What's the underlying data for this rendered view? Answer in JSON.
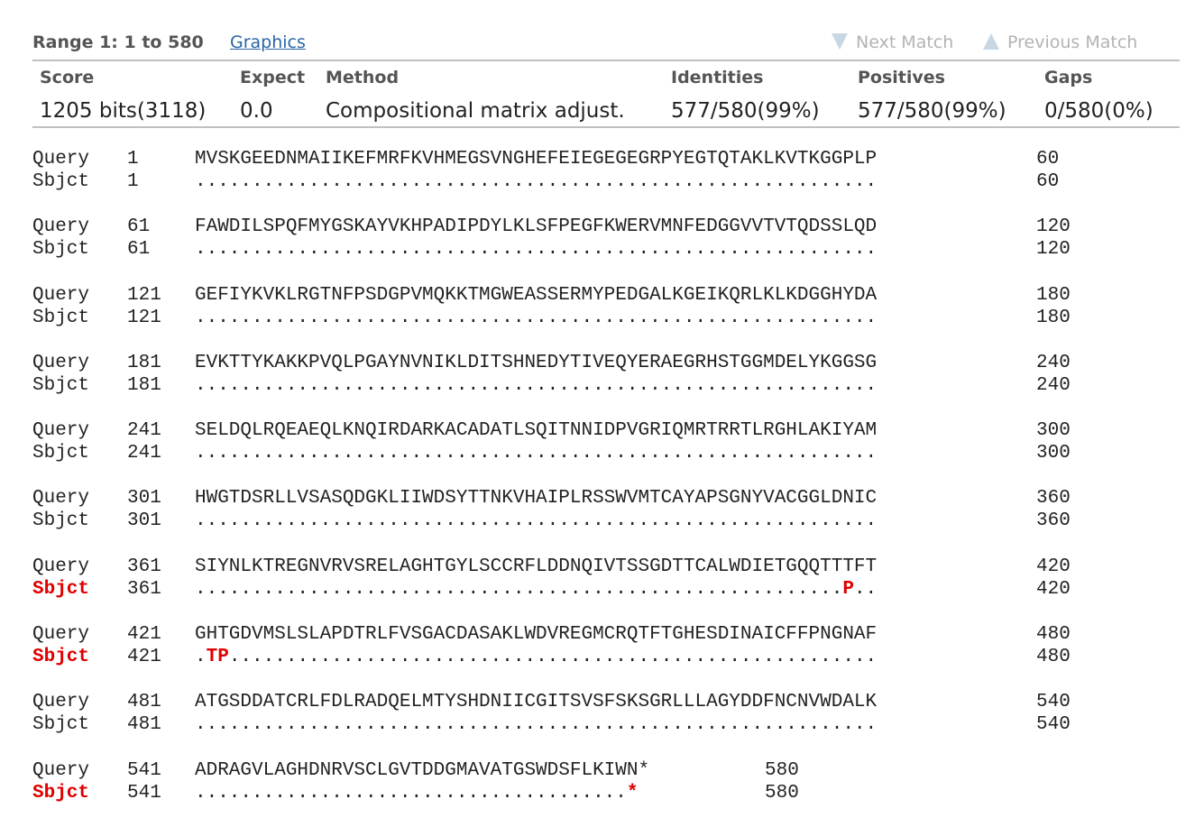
{
  "range": {
    "label": "Range 1: 1 to 580",
    "graphics_link": "Graphics",
    "next_match": "Next Match",
    "previous_match": "Previous Match"
  },
  "stats": {
    "headers": {
      "score": "Score",
      "expect": "Expect",
      "method": "Method",
      "identities": "Identities",
      "positives": "Positives",
      "gaps": "Gaps"
    },
    "values": {
      "score": "1205 bits(3118)",
      "expect": "0.0",
      "method": "Compositional matrix adjust.",
      "identities": "577/580(99%)",
      "positives": "577/580(99%)",
      "gaps": "0/580(0%)"
    }
  },
  "alignment": {
    "query_label": "Query",
    "subject_label": "Sbjct",
    "blocks": [
      {
        "start": "1",
        "end": "60",
        "query": "MVSKGEEDNMAIIKEFMRFKVHMEGSVNGHEFEIEGEGEGRPYEGTQTAKLKVTKGGPLP",
        "subject": "............................................................",
        "subject_red": false
      },
      {
        "start": "61",
        "end": "120",
        "query": "FAWDILSPQFMYGSKAYVKHPADIPDYLKLSFPEGFKWERVMNFEDGGVVTVTQDSSLQD",
        "subject": "............................................................",
        "subject_red": false
      },
      {
        "start": "121",
        "end": "180",
        "query": "GEFIYKVKLRGTNFPSDGPVMQKKTMGWEASSERMYPEDGALKGEIKQRLKLKDGGHYDA",
        "subject": "............................................................",
        "subject_red": false
      },
      {
        "start": "181",
        "end": "240",
        "query": "EVKTTYKAKKPVQLPGAYNVNIKLDITSHNEDYTIVEQYERAEGRHSTGGMDELYKGGSG",
        "subject": "............................................................",
        "subject_red": false
      },
      {
        "start": "241",
        "end": "300",
        "query": "SELDQLRQEAEQLKNQIRDARKACADATLSQITNNIDPVGRIQMRTRRTLRGHLAKIYAM",
        "subject": "............................................................",
        "subject_red": false
      },
      {
        "start": "301",
        "end": "360",
        "query": "HWGTDSRLLVSASQDGKLIIWDSYTTNKVHAIPLRSSWVMTCAYAPSGNYVACGGLDNIC",
        "subject": "............................................................",
        "subject_red": false
      },
      {
        "start": "361",
        "end": "420",
        "query": "SIYNLKTREGNVRVSRELAGHTGYLSCCRFLDDNQIVTSSGDTTCALWDIETGQQTTTFT",
        "subject": ".........................................................P..",
        "subject_red": true
      },
      {
        "start": "421",
        "end": "480",
        "query": "GHTGDVMSLSLAPDTRLFVSGACDASAKLWDVREGMCRQTFTGHESDINAICFFPNGNAF",
        "subject": ".TP.........................................................",
        "subject_red": true
      },
      {
        "start": "481",
        "end": "540",
        "query": "ATGSDDATCRLFDLRADQELMTYSHDNIICGITSVSFSKSGRLLLAGYDDFNCNVWDALK",
        "subject": "............................................................",
        "subject_red": false
      },
      {
        "start": "541",
        "end": "580",
        "query": "ADRAGVLAGHDNRVSCLGVTDDGMAVATGSWDSFLKIWN*",
        "subject": "......................................*",
        "subject_red": true
      }
    ]
  }
}
